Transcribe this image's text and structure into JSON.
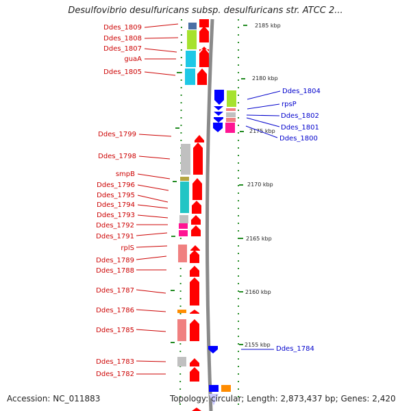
{
  "title": "Desulfovibrio desulfuricans subsp. desulfuricans str. ATCC 2...",
  "footer": {
    "accession": "Accession: NC_011883",
    "summary": "Topology: circular; Length: 2,873,437 bp; Genes: 2,420"
  },
  "colors": {
    "forward_gene": "#ff0000",
    "reverse_gene": "#0000ff",
    "forward_label": "#cc0000",
    "reverse_label": "#0000cc",
    "backbone": "#888888",
    "tick": "#228b22"
  },
  "ruler": [
    {
      "label": "2185 kbp"
    },
    {
      "label": "2180 kbp"
    },
    {
      "label": "2175 kbp"
    },
    {
      "label": "2170 kbp"
    },
    {
      "label": "2165 kbp"
    },
    {
      "label": "2160 kbp"
    },
    {
      "label": "2155 kbp"
    }
  ],
  "forward_labels": [
    {
      "text": "Ddes_1809"
    },
    {
      "text": "Ddes_1808"
    },
    {
      "text": "Ddes_1807"
    },
    {
      "text": "guaA"
    },
    {
      "text": "Ddes_1805"
    },
    {
      "text": "Ddes_1799"
    },
    {
      "text": "Ddes_1798"
    },
    {
      "text": "smpB"
    },
    {
      "text": "Ddes_1796"
    },
    {
      "text": "Ddes_1795"
    },
    {
      "text": "Ddes_1794"
    },
    {
      "text": "Ddes_1793"
    },
    {
      "text": "Ddes_1792"
    },
    {
      "text": "Ddes_1791"
    },
    {
      "text": "rplS"
    },
    {
      "text": "Ddes_1789"
    },
    {
      "text": "Ddes_1788"
    },
    {
      "text": "Ddes_1787"
    },
    {
      "text": "Ddes_1786"
    },
    {
      "text": "Ddes_1785"
    },
    {
      "text": "Ddes_1783"
    },
    {
      "text": "Ddes_1782"
    }
  ],
  "reverse_labels": [
    {
      "text": "Ddes_1804"
    },
    {
      "text": "rpsP"
    },
    {
      "text": "Ddes_1802"
    },
    {
      "text": "Ddes_1801"
    },
    {
      "text": "Ddes_1800"
    },
    {
      "text": "Ddes_1784"
    }
  ],
  "cog_colors": {
    "steel": "#4a6fa5",
    "lime": "#a6e22e",
    "cyan": "#1ec8e6",
    "gray": "#c0c0c0",
    "olive": "#b5a642",
    "teal": "#22c5c5",
    "pink": "#ff1493",
    "salmon": "#f08080",
    "orange": "#ff8c00",
    "lavender": "#c8c8ff"
  }
}
